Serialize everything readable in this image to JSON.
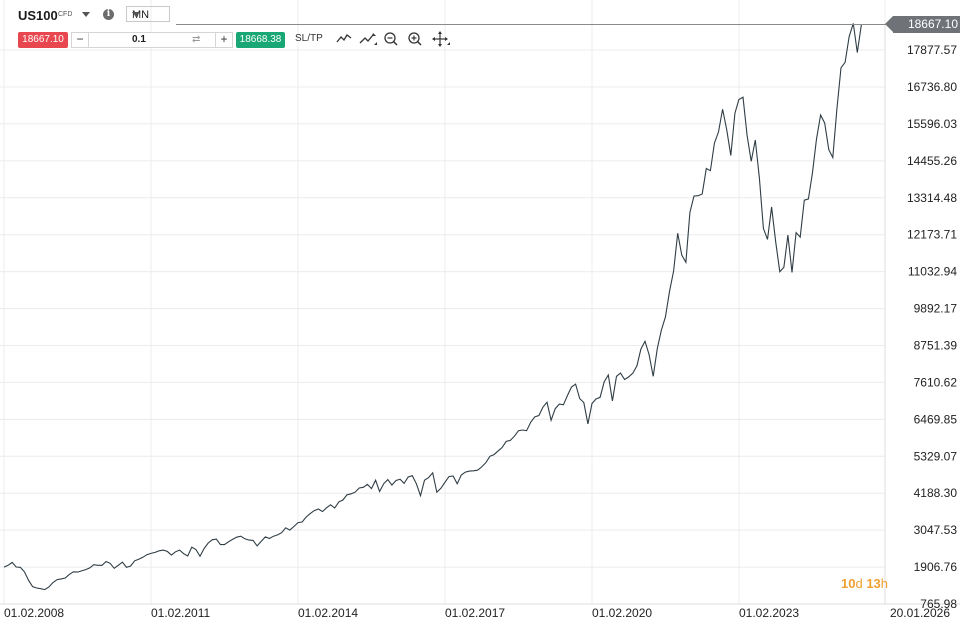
{
  "header": {
    "symbol": "US100",
    "symbol_type": "CFD",
    "info_icon": "i",
    "timeframe": "MN"
  },
  "trade": {
    "sell_price": "18667.10",
    "quantity": "0.1",
    "buy_price": "18668.38",
    "sltp_label": "SL/TP",
    "minus": "−",
    "plus": "+",
    "swap_icon": "⇄"
  },
  "current_price_label": "18667.10",
  "countdown": {
    "days": "10",
    "days_unit": "d",
    "hours": "13",
    "hours_unit": "h"
  },
  "colors": {
    "sell": "#e8474f",
    "buy": "#19a776",
    "line": "#2f3d45",
    "countdown": "#f0a030"
  },
  "tools": [
    "line-chart-icon",
    "draw-line-icon",
    "zoom-out-icon",
    "zoom-in-icon",
    "move-icon"
  ],
  "chart_data": {
    "type": "line",
    "y_ticks": [
      "17877.57",
      "16736.80",
      "15596.03",
      "14455.26",
      "13314.48",
      "12173.71",
      "11032.94",
      "9892.17",
      "8751.39",
      "7610.62",
      "6469.85",
      "5329.07",
      "4188.30",
      "3047.53",
      "1906.76",
      "765.98"
    ],
    "x_ticks": [
      "01.02.2008",
      "01.02.2011",
      "01.02.2014",
      "01.02.2017",
      "01.02.2020",
      "01.02.2023",
      "20.01.2026"
    ],
    "ylim": [
      765.98,
      18667.1
    ],
    "x_start": "01.02.2008",
    "grid": true,
    "series": [
      {
        "values": [
          1906,
          1960,
          2050,
          1910,
          1900,
          1760,
          1500,
          1300,
          1260,
          1240,
          1210,
          1290,
          1430,
          1520,
          1540,
          1570,
          1680,
          1760,
          1750,
          1790,
          1830,
          1880,
          1980,
          1960,
          1960,
          2080,
          2020,
          1870,
          1960,
          2060,
          1900,
          1940,
          2100,
          2150,
          2210,
          2290,
          2330,
          2360,
          2410,
          2430,
          2390,
          2280,
          2380,
          2430,
          2320,
          2250,
          2520,
          2450,
          2240,
          2480,
          2650,
          2750,
          2770,
          2600,
          2600,
          2690,
          2760,
          2830,
          2860,
          2780,
          2740,
          2730,
          2560,
          2700,
          2840,
          2790,
          2860,
          2900,
          2970,
          3120,
          3050,
          3160,
          3280,
          3300,
          3450,
          3560,
          3650,
          3700,
          3620,
          3740,
          3830,
          3730,
          3920,
          3980,
          4140,
          4170,
          4220,
          4350,
          4370,
          4460,
          4330,
          4590,
          4240,
          4480,
          4610,
          4440,
          4580,
          4620,
          4490,
          4690,
          4730,
          4480,
          4110,
          4590,
          4670,
          4820,
          4220,
          4340,
          4530,
          4700,
          4720,
          4480,
          4750,
          4840,
          4870,
          4880,
          4900,
          5000,
          5130,
          5330,
          5380,
          5490,
          5600,
          5790,
          5820,
          5950,
          6120,
          6140,
          6120,
          6380,
          6550,
          6590,
          6850,
          7000,
          6440,
          6800,
          6940,
          6920,
          7210,
          7470,
          7560,
          7110,
          6990,
          6330,
          6960,
          7100,
          7150,
          7630,
          7840,
          7040,
          7800,
          7900,
          7700,
          7780,
          7900,
          8120,
          8640,
          8880,
          8470,
          7800,
          8660,
          9230,
          9630,
          10420,
          11050,
          12220,
          11540,
          11320,
          12860,
          13370,
          13380,
          13430,
          14220,
          14150,
          15000,
          15350,
          16050,
          15420,
          14620,
          15920,
          16350,
          16420,
          15240,
          14440,
          15100,
          13920,
          12370,
          12030,
          13030,
          11950,
          11030,
          11170,
          12160,
          11010,
          12240,
          12100,
          13240,
          13280,
          14070,
          15130,
          15870,
          15620,
          14800,
          14560,
          16060,
          17330,
          17500,
          18300,
          18700,
          17800,
          18667.1
        ]
      }
    ]
  }
}
